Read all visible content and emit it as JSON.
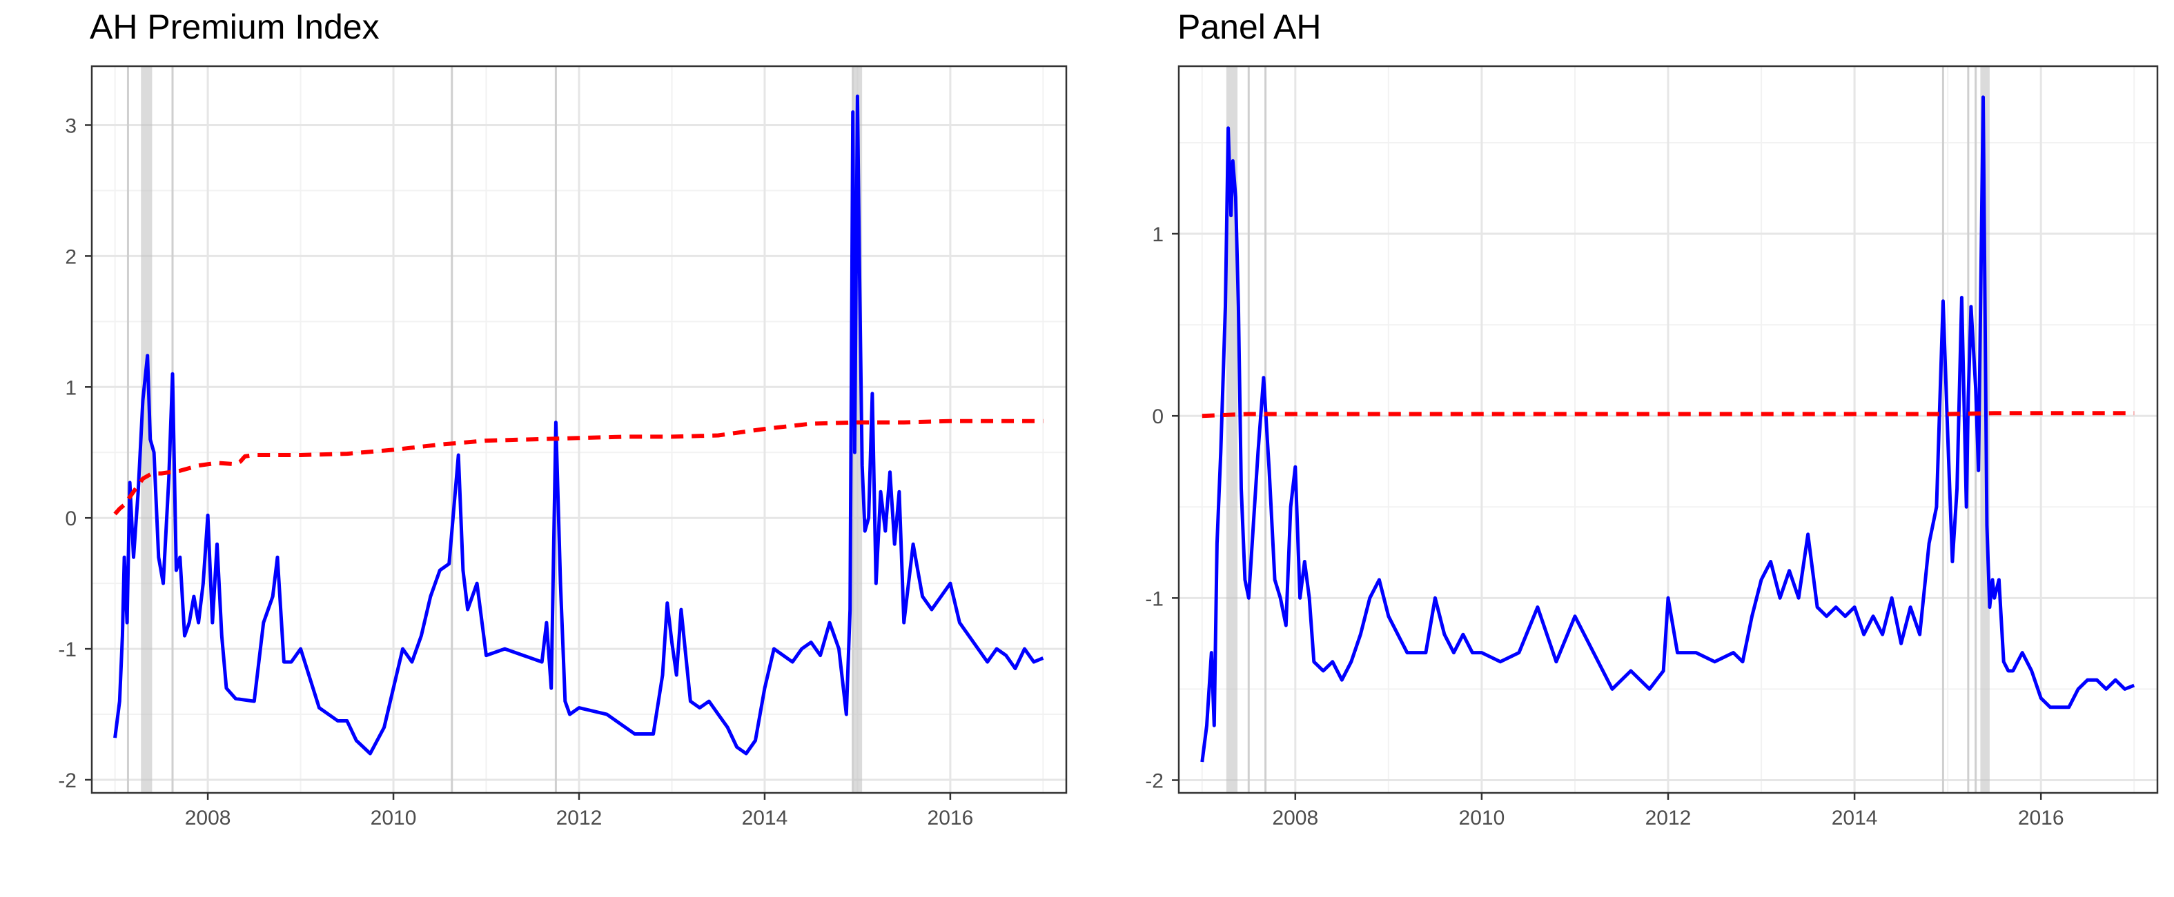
{
  "chart_data": [
    {
      "type": "line",
      "title": "AH Premium Index",
      "xlabel": "",
      "ylabel": "",
      "xlim": [
        2006.75,
        2017.25
      ],
      "ylim": [
        -2.1,
        3.45
      ],
      "x_ticks": [
        2008,
        2010,
        2012,
        2014,
        2016
      ],
      "x_tick_labels": [
        "2008",
        "2010",
        "2012",
        "2014",
        "2016"
      ],
      "y_ticks": [
        -2,
        -1,
        0,
        1,
        2,
        3
      ],
      "y_tick_labels": [
        "-2",
        "-1",
        "0",
        "1",
        "2",
        "3"
      ],
      "grid": true,
      "legend": "none",
      "shaded_regions": [
        [
          2007.28,
          2007.4
        ],
        [
          2014.95,
          2015.05
        ]
      ],
      "event_lines": [
        2007.14,
        2007.62,
        2010.63,
        2011.75,
        2014.95
      ],
      "series": [
        {
          "style": "solid",
          "color": "#0000ff",
          "x": [
            2007.0,
            2007.05,
            2007.08,
            2007.1,
            2007.13,
            2007.16,
            2007.2,
            2007.25,
            2007.3,
            2007.35,
            2007.38,
            2007.42,
            2007.47,
            2007.52,
            2007.58,
            2007.62,
            2007.66,
            2007.7,
            2007.75,
            2007.8,
            2007.85,
            2007.9,
            2007.95,
            2008.0,
            2008.05,
            2008.1,
            2008.15,
            2008.2,
            2008.3,
            2008.5,
            2008.6,
            2008.7,
            2008.75,
            2008.82,
            2008.9,
            2009.0,
            2009.2,
            2009.4,
            2009.5,
            2009.6,
            2009.75,
            2009.9,
            2010.0,
            2010.1,
            2010.2,
            2010.3,
            2010.4,
            2010.5,
            2010.6,
            2010.7,
            2010.75,
            2010.8,
            2010.9,
            2011.0,
            2011.2,
            2011.4,
            2011.6,
            2011.65,
            2011.7,
            2011.75,
            2011.8,
            2011.85,
            2011.9,
            2012.0,
            2012.3,
            2012.6,
            2012.8,
            2012.9,
            2012.95,
            2013.0,
            2013.05,
            2013.1,
            2013.2,
            2013.3,
            2013.4,
            2013.5,
            2013.6,
            2013.7,
            2013.8,
            2013.9,
            2014.0,
            2014.1,
            2014.2,
            2014.3,
            2014.4,
            2014.5,
            2014.6,
            2014.7,
            2014.8,
            2014.88,
            2014.92,
            2014.95,
            2014.97,
            2015.0,
            2015.02,
            2015.05,
            2015.08,
            2015.12,
            2015.16,
            2015.2,
            2015.25,
            2015.3,
            2015.35,
            2015.4,
            2015.45,
            2015.5,
            2015.55,
            2015.6,
            2015.65,
            2015.7,
            2015.8,
            2015.9,
            2016.0,
            2016.1,
            2016.2,
            2016.3,
            2016.4,
            2016.5,
            2016.6,
            2016.7,
            2016.8,
            2016.9,
            2017.0
          ],
          "y": [
            -1.68,
            -1.4,
            -0.9,
            -0.3,
            -0.8,
            0.27,
            -0.3,
            0.2,
            0.9,
            1.24,
            0.6,
            0.5,
            -0.3,
            -0.5,
            0.3,
            1.1,
            -0.4,
            -0.3,
            -0.9,
            -0.8,
            -0.6,
            -0.8,
            -0.5,
            0.02,
            -0.8,
            -0.2,
            -0.9,
            -1.3,
            -1.38,
            -1.4,
            -0.8,
            -0.6,
            -0.3,
            -1.1,
            -1.1,
            -1.0,
            -1.45,
            -1.55,
            -1.55,
            -1.7,
            -1.8,
            -1.6,
            -1.3,
            -1.0,
            -1.1,
            -0.9,
            -0.6,
            -0.4,
            -0.35,
            0.48,
            -0.4,
            -0.7,
            -0.5,
            -1.05,
            -1.0,
            -1.05,
            -1.1,
            -0.8,
            -1.3,
            0.73,
            -0.5,
            -1.4,
            -1.5,
            -1.45,
            -1.5,
            -1.65,
            -1.65,
            -1.2,
            -0.65,
            -0.95,
            -1.2,
            -0.7,
            -1.4,
            -1.45,
            -1.4,
            -1.5,
            -1.6,
            -1.75,
            -1.8,
            -1.7,
            -1.3,
            -1.0,
            -1.05,
            -1.1,
            -1.0,
            -0.95,
            -1.05,
            -0.8,
            -1.0,
            -1.5,
            -0.7,
            3.1,
            0.5,
            3.22,
            2.0,
            0.4,
            -0.1,
            0.0,
            0.95,
            -0.5,
            0.2,
            -0.1,
            0.35,
            -0.2,
            0.2,
            -0.8,
            -0.5,
            -0.2,
            -0.4,
            -0.6,
            -0.7,
            -0.6,
            -0.5,
            -0.8,
            -0.9,
            -1.0,
            -1.1,
            -1.0,
            -1.05,
            -1.15,
            -1.0,
            -1.1,
            -1.07
          ]
        },
        {
          "style": "dashed",
          "color": "#ff0000",
          "x": [
            2007.0,
            2007.05,
            2007.1,
            2007.2,
            2007.3,
            2007.4,
            2007.5,
            2007.7,
            2007.9,
            2008.1,
            2008.3,
            2008.35,
            2008.4,
            2008.5,
            2009.0,
            2009.5,
            2010.0,
            2010.5,
            2011.0,
            2011.5,
            2012.0,
            2012.5,
            2013.0,
            2013.5,
            2014.0,
            2014.5,
            2015.0,
            2015.5,
            2016.0,
            2016.5,
            2017.0
          ],
          "y": [
            0.03,
            0.07,
            0.1,
            0.2,
            0.3,
            0.34,
            0.34,
            0.36,
            0.4,
            0.42,
            0.41,
            0.43,
            0.47,
            0.48,
            0.48,
            0.49,
            0.52,
            0.56,
            0.59,
            0.6,
            0.61,
            0.62,
            0.62,
            0.63,
            0.68,
            0.72,
            0.73,
            0.73,
            0.74,
            0.74,
            0.74
          ]
        }
      ]
    },
    {
      "type": "line",
      "title": "Panel AH",
      "xlabel": "",
      "ylabel": "",
      "xlim": [
        2006.75,
        2017.25
      ],
      "ylim": [
        -2.07,
        1.92
      ],
      "x_ticks": [
        2008,
        2010,
        2012,
        2014,
        2016
      ],
      "x_tick_labels": [
        "2008",
        "2010",
        "2012",
        "2014",
        "2016"
      ],
      "y_ticks": [
        -2,
        -1,
        0,
        1
      ],
      "y_tick_labels": [
        "-2",
        "-1",
        "0",
        "1"
      ],
      "grid": true,
      "legend": "none",
      "shaded_regions": [
        [
          2007.26,
          2007.38
        ],
        [
          2015.35,
          2015.45
        ]
      ],
      "event_lines": [
        2007.5,
        2007.68,
        2014.95,
        2015.22,
        2015.3
      ],
      "series": [
        {
          "style": "solid",
          "color": "#0000ff",
          "x": [
            2007.0,
            2007.05,
            2007.1,
            2007.13,
            2007.16,
            2007.2,
            2007.25,
            2007.28,
            2007.31,
            2007.33,
            2007.36,
            2007.39,
            2007.42,
            2007.46,
            2007.5,
            2007.55,
            2007.6,
            2007.66,
            2007.72,
            2007.78,
            2007.84,
            2007.9,
            2007.95,
            2008.0,
            2008.05,
            2008.1,
            2008.15,
            2008.2,
            2008.3,
            2008.4,
            2008.5,
            2008.6,
            2008.7,
            2008.8,
            2008.9,
            2009.0,
            2009.2,
            2009.4,
            2009.5,
            2009.6,
            2009.7,
            2009.8,
            2009.9,
            2010.0,
            2010.2,
            2010.4,
            2010.6,
            2010.8,
            2011.0,
            2011.2,
            2011.4,
            2011.6,
            2011.8,
            2011.95,
            2012.0,
            2012.05,
            2012.1,
            2012.3,
            2012.5,
            2012.7,
            2012.8,
            2012.9,
            2013.0,
            2013.1,
            2013.2,
            2013.3,
            2013.4,
            2013.5,
            2013.6,
            2013.7,
            2013.8,
            2013.9,
            2014.0,
            2014.1,
            2014.2,
            2014.3,
            2014.4,
            2014.5,
            2014.6,
            2014.7,
            2014.8,
            2014.88,
            2014.95,
            2015.0,
            2015.05,
            2015.1,
            2015.15,
            2015.2,
            2015.22,
            2015.25,
            2015.3,
            2015.33,
            2015.38,
            2015.42,
            2015.45,
            2015.48,
            2015.5,
            2015.55,
            2015.6,
            2015.65,
            2015.7,
            2015.75,
            2015.8,
            2015.9,
            2016.0,
            2016.1,
            2016.2,
            2016.3,
            2016.4,
            2016.5,
            2016.6,
            2016.7,
            2016.8,
            2016.9,
            2017.0
          ],
          "y": [
            -1.9,
            -1.7,
            -1.3,
            -1.7,
            -0.7,
            -0.2,
            0.6,
            1.58,
            1.1,
            1.4,
            1.2,
            0.6,
            -0.4,
            -0.9,
            -1.0,
            -0.6,
            -0.2,
            0.21,
            -0.3,
            -0.9,
            -1.0,
            -1.15,
            -0.5,
            -0.28,
            -1.0,
            -0.8,
            -1.0,
            -1.35,
            -1.4,
            -1.35,
            -1.45,
            -1.35,
            -1.2,
            -1.0,
            -0.9,
            -1.1,
            -1.3,
            -1.3,
            -1.0,
            -1.2,
            -1.3,
            -1.2,
            -1.3,
            -1.3,
            -1.35,
            -1.3,
            -1.05,
            -1.35,
            -1.1,
            -1.3,
            -1.5,
            -1.4,
            -1.5,
            -1.4,
            -1.0,
            -1.15,
            -1.3,
            -1.3,
            -1.35,
            -1.3,
            -1.35,
            -1.1,
            -0.9,
            -0.8,
            -1.0,
            -0.85,
            -1.0,
            -0.65,
            -1.05,
            -1.1,
            -1.05,
            -1.1,
            -1.05,
            -1.2,
            -1.1,
            -1.2,
            -1.0,
            -1.25,
            -1.05,
            -1.2,
            -0.7,
            -0.5,
            0.63,
            -0.1,
            -0.8,
            -0.4,
            0.65,
            -0.5,
            0.1,
            0.6,
            0.15,
            -0.3,
            1.75,
            -0.6,
            -1.05,
            -0.9,
            -1.0,
            -0.9,
            -1.35,
            -1.4,
            -1.4,
            -1.35,
            -1.3,
            -1.4,
            -1.55,
            -1.6,
            -1.6,
            -1.6,
            -1.5,
            -1.45,
            -1.45,
            -1.5,
            -1.45,
            -1.5,
            -1.48
          ]
        },
        {
          "style": "dashed",
          "color": "#ff0000",
          "x": [
            2007.0,
            2007.5,
            2008.0,
            2008.5,
            2009.0,
            2010.0,
            2011.0,
            2012.0,
            2013.0,
            2014.0,
            2015.0,
            2015.5,
            2016.0,
            2016.5,
            2017.0
          ],
          "y": [
            0.0,
            0.01,
            0.01,
            0.01,
            0.01,
            0.01,
            0.01,
            0.01,
            0.01,
            0.01,
            0.01,
            0.015,
            0.015,
            0.015,
            0.015
          ]
        }
      ]
    }
  ]
}
